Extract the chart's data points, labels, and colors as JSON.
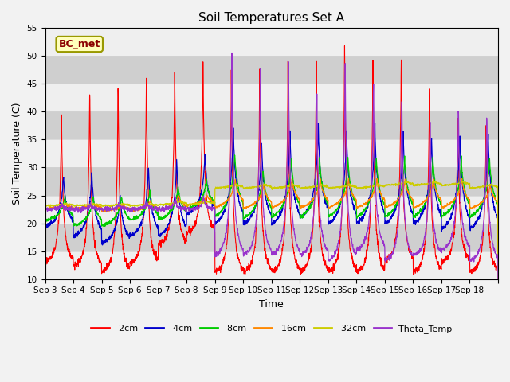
{
  "title": "Soil Temperatures Set A",
  "xlabel": "Time",
  "ylabel": "Soil Temperature (C)",
  "ylim": [
    10,
    55
  ],
  "yticks": [
    10,
    15,
    20,
    25,
    30,
    35,
    40,
    45,
    50,
    55
  ],
  "xtick_labels": [
    "Sep 3",
    "Sep 4",
    "Sep 5",
    "Sep 6",
    "Sep 7",
    "Sep 8",
    "Sep 9",
    "Sep 10",
    "Sep 11",
    "Sep 12",
    "Sep 13",
    "Sep 14",
    "Sep 15",
    "Sep 16",
    "Sep 17",
    "Sep 18"
  ],
  "annotation": "BC_met",
  "legend_entries": [
    "-2cm",
    "-4cm",
    "-8cm",
    "-16cm",
    "-32cm",
    "Theta_Temp"
  ],
  "line_colors": [
    "#ff0000",
    "#0000cc",
    "#00cc00",
    "#ff8800",
    "#cccc00",
    "#9933cc"
  ],
  "n_days": 16,
  "pts_per_day": 144
}
